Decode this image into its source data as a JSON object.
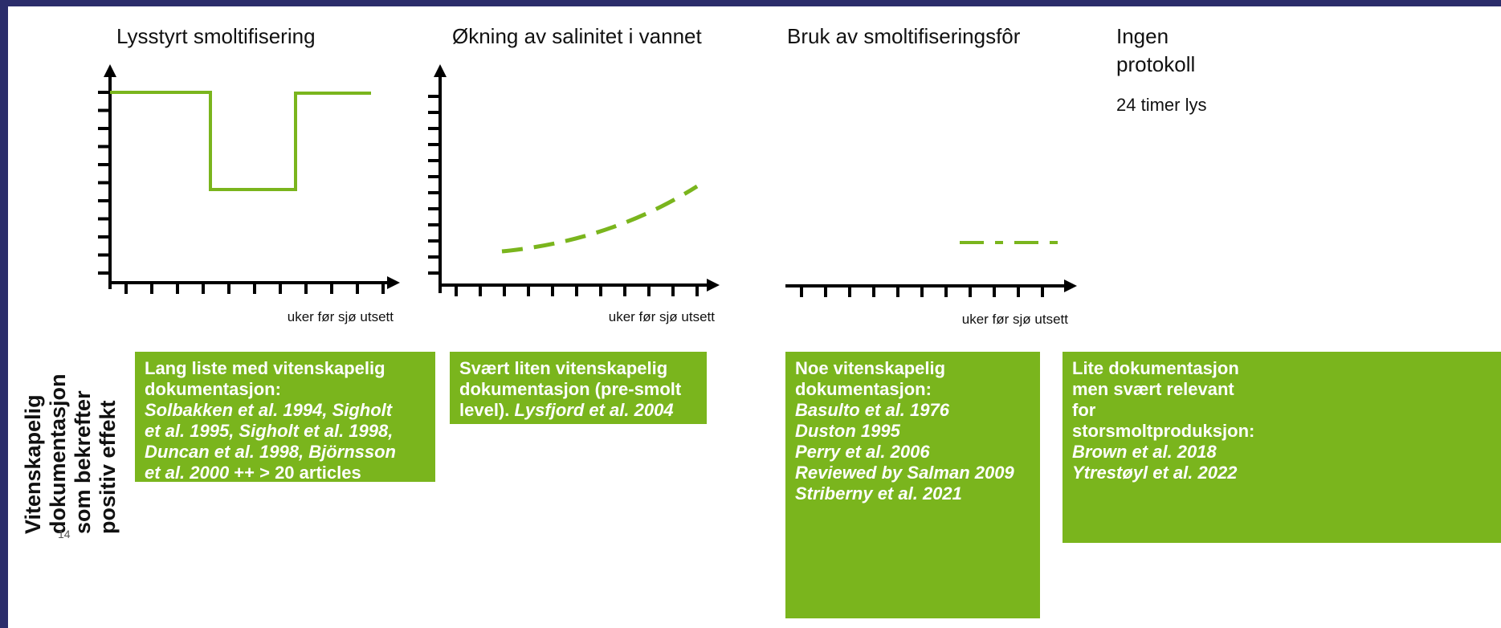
{
  "panels": [
    {
      "title": [
        "Lysstyrt smoltifisering"
      ],
      "axis_label": "uker før sjø utsett"
    },
    {
      "title": [
        "Økning av salinitet i vannet"
      ],
      "axis_label": "uker før sjø utsett"
    },
    {
      "title": [
        "Bruk av smoltifiseringsfôr"
      ],
      "axis_label": "uker før sjø utsett"
    },
    {
      "title": [
        "Ingen",
        "protokoll"
      ],
      "note": "24 timer lys"
    }
  ],
  "side_label": [
    "Vitenskapelig",
    "dokumentasjon",
    "som bekrefter",
    "positiv effekt"
  ],
  "page_number": "14",
  "boxes": [
    {
      "lines": [
        [
          {
            "text": "Lang liste med vitenskapelig",
            "italic": false
          }
        ],
        [
          {
            "text": "dokumentasjon:",
            "italic": false
          }
        ],
        [
          {
            "text": "Solbakken et al. 1994, Sigholt",
            "italic": true
          }
        ],
        [
          {
            "text": "et al. 1995, Sigholt et al. 1998,",
            "italic": true
          }
        ],
        [
          {
            "text": "Duncan et al. 1998, Björnsson",
            "italic": true
          }
        ],
        [
          {
            "text": "et al. 2000",
            "italic": true
          },
          {
            "text": " ++ > 20 articles",
            "italic": false
          }
        ]
      ]
    },
    {
      "lines": [
        [
          {
            "text": "Svært liten vitenskapelig",
            "italic": false
          }
        ],
        [
          {
            "text": "dokumentasjon (pre-smolt",
            "italic": false
          }
        ],
        [
          {
            "text": "level). ",
            "italic": false
          },
          {
            "text": "Lysfjord et al. 2004",
            "italic": true
          }
        ]
      ]
    },
    {
      "lines": [
        [
          {
            "text": "Noe vitenskapelig",
            "italic": false
          }
        ],
        [
          {
            "text": "dokumentasjon:",
            "italic": false
          }
        ],
        [
          {
            "text": "Basulto et al. 1976",
            "italic": true
          }
        ],
        [
          {
            "text": "Duston 1995",
            "italic": true
          }
        ],
        [
          {
            "text": "Perry et al. 2006",
            "italic": true
          }
        ],
        [
          {
            "text": "Reviewed by Salman 2009",
            "italic": true
          }
        ],
        [
          {
            "text": "Striberny et al. 2021",
            "italic": true
          }
        ]
      ]
    },
    {
      "lines": [
        [
          {
            "text": "Lite dokumentasjon",
            "italic": false
          }
        ],
        [
          {
            "text": "men svært relevant",
            "italic": false
          }
        ],
        [
          {
            "text": "for",
            "italic": false
          }
        ],
        [
          {
            "text": "storsmoltproduksjon:",
            "italic": false
          }
        ],
        [
          {
            "text": "Brown et al. 2018",
            "italic": true
          }
        ],
        [
          {
            "text": "Ytrestøyl et al. 2022",
            "italic": true
          }
        ]
      ]
    }
  ]
}
